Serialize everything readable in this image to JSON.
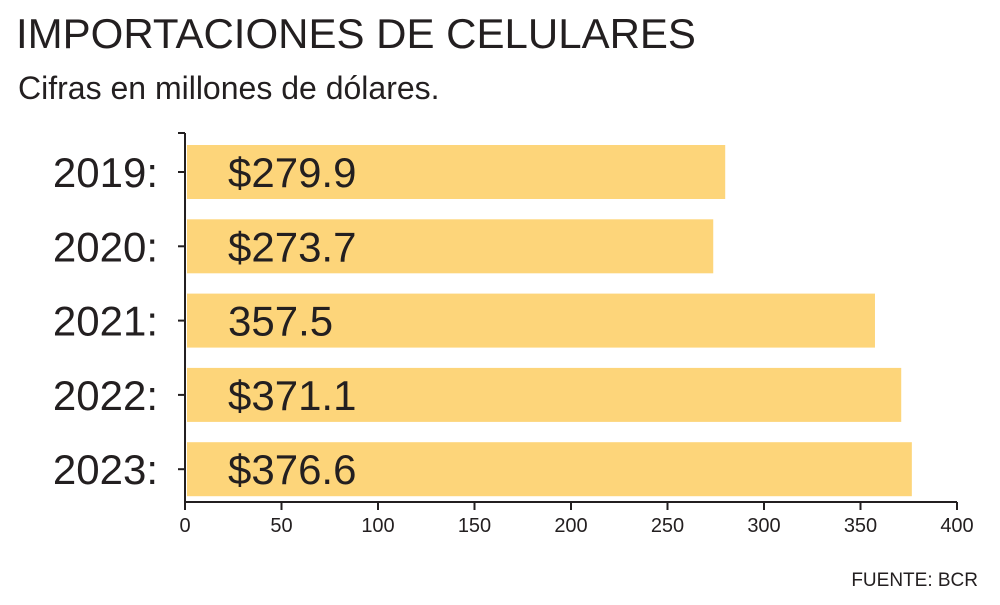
{
  "chart_data": {
    "type": "bar",
    "orientation": "horizontal",
    "title": "IMPORTACIONES DE CELULARES",
    "subtitle": "Cifras en millones de dólares.",
    "categories": [
      "2019:",
      "2020:",
      "2021:",
      "2022:",
      "2023:"
    ],
    "values": [
      279.9,
      273.7,
      357.5,
      371.1,
      376.6
    ],
    "value_labels": [
      "$279.9",
      "$273.7",
      "357.5",
      "$371.1",
      "$376.6"
    ],
    "xlim": [
      0,
      400
    ],
    "x_ticks": [
      0,
      50,
      100,
      150,
      200,
      250,
      300,
      350,
      400
    ],
    "bar_color": "#fdd57a",
    "grid": false,
    "source": "FUENTE: BCR"
  }
}
